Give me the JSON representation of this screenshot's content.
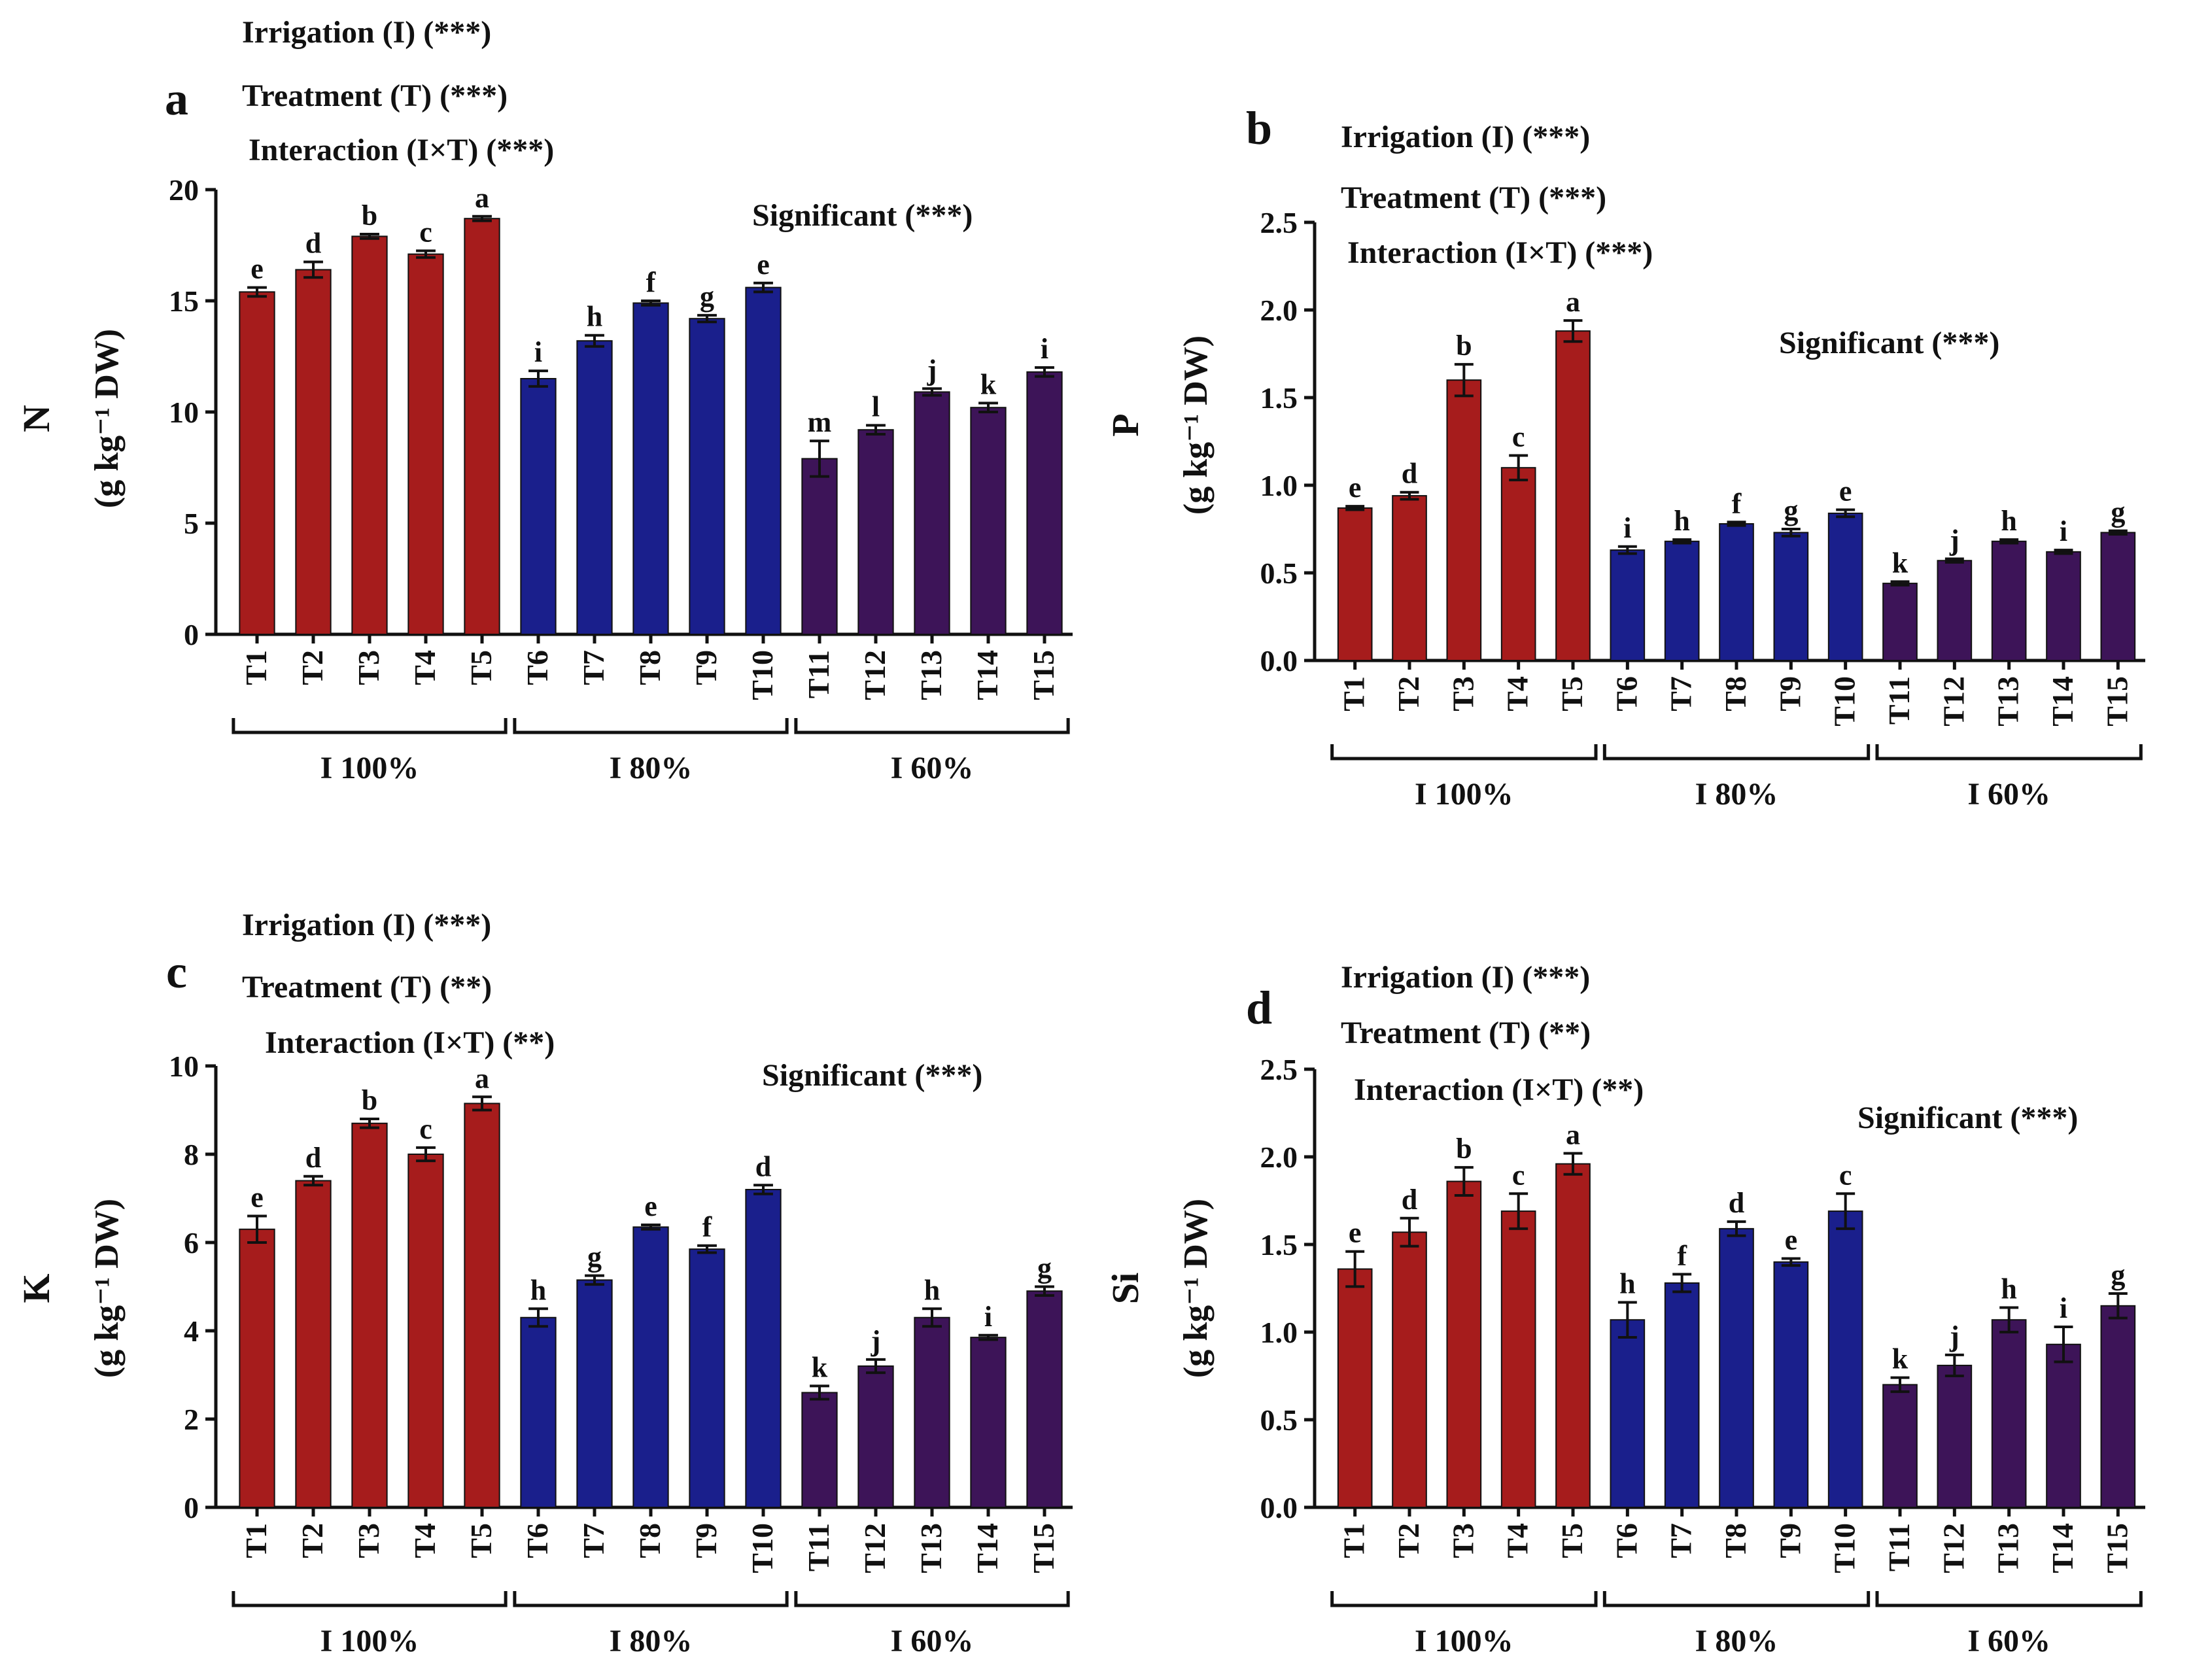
{
  "figure": {
    "colors": {
      "I100": "#a61c1c",
      "I80": "#1a1f8c",
      "I60": "#3d1458",
      "axis": "#111111"
    }
  },
  "chart_data": [
    {
      "type": "bar",
      "panel": "a",
      "nutrient": "N",
      "ylabel_unit": "(g kg⁻¹ DW)",
      "stats": [
        "Irrigation (I) (***)",
        "Treatment (T) (***)",
        "Interaction (I×T) (***)"
      ],
      "significance": "Significant (***)",
      "ylim": [
        0,
        20
      ],
      "yticks": [
        "0",
        "5",
        "10",
        "15",
        "20"
      ],
      "categories": [
        "T1",
        "T2",
        "T3",
        "T4",
        "T5",
        "T6",
        "T7",
        "T8",
        "T9",
        "T10",
        "T11",
        "T12",
        "T13",
        "T14",
        "T15"
      ],
      "values": [
        15.4,
        16.4,
        17.9,
        17.1,
        18.7,
        11.5,
        13.2,
        14.9,
        14.2,
        15.6,
        7.9,
        9.2,
        10.9,
        10.2,
        11.8
      ],
      "errors": [
        0.2,
        0.35,
        0.1,
        0.15,
        0.1,
        0.35,
        0.25,
        0.1,
        0.15,
        0.2,
        0.8,
        0.2,
        0.15,
        0.2,
        0.2
      ],
      "letters": [
        "e",
        "d",
        "b",
        "c",
        "a",
        "i",
        "h",
        "f",
        "g",
        "e",
        "m",
        "l",
        "j",
        "k",
        "i"
      ],
      "groups": [
        {
          "label": "I 100%",
          "from": 0,
          "to": 4
        },
        {
          "label": "I 80%",
          "from": 5,
          "to": 9
        },
        {
          "label": "I 60%",
          "from": 10,
          "to": 14
        }
      ]
    },
    {
      "type": "bar",
      "panel": "b",
      "nutrient": "P",
      "ylabel_unit": "(g kg⁻¹ DW)",
      "stats": [
        "Irrigation (I) (***)",
        "Treatment (T) (***)",
        "Interaction (I×T) (***)"
      ],
      "significance": "Significant (***)",
      "ylim": [
        0,
        2.5
      ],
      "yticks": [
        "0.0",
        "0.5",
        "1.0",
        "1.5",
        "2.0",
        "2.5"
      ],
      "categories": [
        "T1",
        "T2",
        "T3",
        "T4",
        "T5",
        "T6",
        "T7",
        "T8",
        "T9",
        "T10",
        "T11",
        "T12",
        "T13",
        "T14",
        "T15"
      ],
      "values": [
        0.87,
        0.94,
        1.6,
        1.1,
        1.88,
        0.63,
        0.68,
        0.78,
        0.73,
        0.84,
        0.44,
        0.57,
        0.68,
        0.62,
        0.73
      ],
      "errors": [
        0.01,
        0.02,
        0.09,
        0.07,
        0.06,
        0.02,
        0.01,
        0.01,
        0.02,
        0.02,
        0.01,
        0.01,
        0.01,
        0.01,
        0.01
      ],
      "letters": [
        "e",
        "d",
        "b",
        "c",
        "a",
        "i",
        "h",
        "f",
        "g",
        "e",
        "k",
        "j",
        "h",
        "i",
        "g"
      ],
      "groups": [
        {
          "label": "I 100%",
          "from": 0,
          "to": 4
        },
        {
          "label": "I 80%",
          "from": 5,
          "to": 9
        },
        {
          "label": "I 60%",
          "from": 10,
          "to": 14
        }
      ]
    },
    {
      "type": "bar",
      "panel": "c",
      "nutrient": "K",
      "ylabel_unit": "(g kg⁻¹ DW)",
      "stats": [
        "Irrigation (I) (***)",
        "Treatment (T) (**)",
        "Interaction (I×T) (**)"
      ],
      "significance": "Significant (***)",
      "ylim": [
        0,
        10
      ],
      "yticks": [
        "0",
        "2",
        "4",
        "6",
        "8",
        "10"
      ],
      "categories": [
        "T1",
        "T2",
        "T3",
        "T4",
        "T5",
        "T6",
        "T7",
        "T8",
        "T9",
        "T10",
        "T11",
        "T12",
        "T13",
        "T14",
        "T15"
      ],
      "values": [
        6.3,
        7.4,
        8.7,
        8.0,
        9.15,
        4.3,
        5.15,
        6.35,
        5.85,
        7.2,
        2.6,
        3.2,
        4.3,
        3.85,
        4.9
      ],
      "errors": [
        0.3,
        0.1,
        0.1,
        0.15,
        0.15,
        0.2,
        0.1,
        0.05,
        0.08,
        0.1,
        0.15,
        0.15,
        0.2,
        0.05,
        0.1
      ],
      "letters": [
        "e",
        "d",
        "b",
        "c",
        "a",
        "h",
        "g",
        "e",
        "f",
        "d",
        "k",
        "j",
        "h",
        "i",
        "g"
      ],
      "groups": [
        {
          "label": "I 100%",
          "from": 0,
          "to": 4
        },
        {
          "label": "I 80%",
          "from": 5,
          "to": 9
        },
        {
          "label": "I 60%",
          "from": 10,
          "to": 14
        }
      ]
    },
    {
      "type": "bar",
      "panel": "d",
      "nutrient": "Si",
      "ylabel_unit": "(g kg⁻¹ DW)",
      "stats": [
        "Irrigation (I) (***)",
        "Treatment (T) (**)",
        "Interaction (I×T) (**)"
      ],
      "significance": "Significant (***)",
      "ylim": [
        0,
        2.5
      ],
      "yticks": [
        "0.0",
        "0.5",
        "1.0",
        "1.5",
        "2.0",
        "2.5"
      ],
      "categories": [
        "T1",
        "T2",
        "T3",
        "T4",
        "T5",
        "T6",
        "T7",
        "T8",
        "T9",
        "T10",
        "T11",
        "T12",
        "T13",
        "T14",
        "T15"
      ],
      "values": [
        1.36,
        1.57,
        1.86,
        1.69,
        1.96,
        1.07,
        1.28,
        1.59,
        1.4,
        1.69,
        0.7,
        0.81,
        1.07,
        0.93,
        1.15
      ],
      "errors": [
        0.1,
        0.08,
        0.08,
        0.1,
        0.06,
        0.1,
        0.05,
        0.04,
        0.02,
        0.1,
        0.04,
        0.06,
        0.07,
        0.1,
        0.07
      ],
      "letters": [
        "e",
        "d",
        "b",
        "c",
        "a",
        "h",
        "f",
        "d",
        "e",
        "c",
        "k",
        "j",
        "h",
        "i",
        "g"
      ],
      "groups": [
        {
          "label": "I 100%",
          "from": 0,
          "to": 4
        },
        {
          "label": "I 80%",
          "from": 5,
          "to": 9
        },
        {
          "label": "I 60%",
          "from": 10,
          "to": 14
        }
      ]
    }
  ]
}
